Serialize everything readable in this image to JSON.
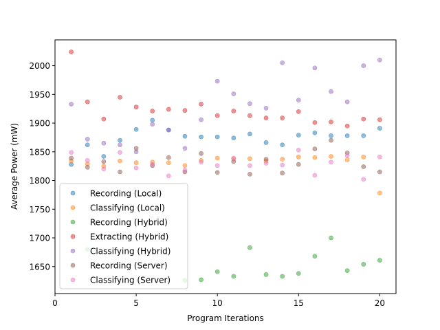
{
  "chart_data": {
    "type": "scatter",
    "title": "",
    "xlabel": "Program Iterations",
    "ylabel": "Average Power (mW)",
    "xlim": [
      0,
      21
    ],
    "ylim": [
      1603,
      2045
    ],
    "xticks": [
      0,
      5,
      10,
      15,
      20
    ],
    "yticks": [
      1650,
      1700,
      1750,
      1800,
      1850,
      1900,
      1950,
      2000
    ],
    "legend_position": "lower-left",
    "x": [
      1,
      2,
      3,
      4,
      5,
      6,
      7,
      8,
      9,
      10,
      11,
      12,
      13,
      14,
      15,
      16,
      17,
      18,
      19,
      20
    ],
    "series": [
      {
        "name": "Recording (Local)",
        "color": "#1f77b4",
        "values": [
          1828,
          1862,
          1842,
          1870,
          1889,
          1905,
          1888,
          1877,
          1876,
          1876,
          1874,
          1881,
          1866,
          1862,
          1879,
          1883,
          1878,
          1878,
          1878,
          1891
        ]
      },
      {
        "name": "Classifying (Local)",
        "color": "#ff7f0e",
        "values": [
          1834,
          1829,
          1825,
          1834,
          1831,
          1832,
          1831,
          1826,
          1835,
          1839,
          1838,
          1838,
          1834,
          1837,
          1841,
          1840,
          1842,
          1836,
          1841,
          1778
        ]
      },
      {
        "name": "Recording (Hybrid)",
        "color": "#2ca02c",
        "values": [
          null,
          1680,
          null,
          null,
          null,
          null,
          null,
          1626,
          1627,
          1641,
          1633,
          1683,
          1636,
          1633,
          1638,
          1668,
          1700,
          1643,
          1654,
          1661
        ]
      },
      {
        "name": "Extracting (Hybrid)",
        "color": "#d62728",
        "values": [
          2024,
          1937,
          1907,
          1945,
          1928,
          1921,
          1924,
          1922,
          1933,
          1913,
          1921,
          1913,
          1909,
          1909,
          1920,
          1901,
          1902,
          1895,
          1907,
          1906
        ]
      },
      {
        "name": "Classifying (Hybrid)",
        "color": "#9467bd",
        "values": [
          1933,
          1872,
          1865,
          1862,
          1850,
          1898,
          1888,
          1856,
          1906,
          1973,
          1951,
          1934,
          1926,
          2005,
          1940,
          1996,
          1955,
          1937,
          2000,
          2010
        ]
      },
      {
        "name": "Recording (Server)",
        "color": "#8c564b",
        "values": [
          1839,
          1823,
          1833,
          1815,
          1856,
          1826,
          1840,
          1815,
          1847,
          1814,
          1833,
          1811,
          1837,
          1813,
          1828,
          1855,
          1870,
          1848,
          1824,
          1815
        ]
      },
      {
        "name": "Classifying (Server)",
        "color": "#e377c2",
        "values": [
          1849,
          1835,
          1820,
          1849,
          1822,
          1828,
          1808,
          1818,
          1832,
          1826,
          1839,
          1826,
          1830,
          1827,
          1853,
          1809,
          1832,
          1843,
          1802,
          1841
        ]
      }
    ]
  }
}
